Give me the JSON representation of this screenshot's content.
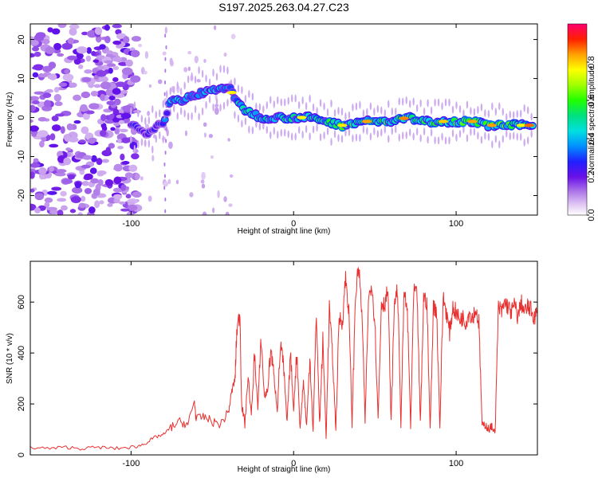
{
  "title": "S197.2025.263.04.27.C23",
  "chart_data": [
    {
      "type": "heatmap",
      "name": "spectrogram",
      "xlabel": "Height of straight line (km)",
      "ylabel": "Frequency (Hz)",
      "xlim": [
        -162,
        150
      ],
      "ylim": [
        -25,
        24
      ],
      "x_ticks": [
        -100,
        0,
        100
      ],
      "y_ticks": [
        -20,
        -10,
        0,
        10,
        20
      ],
      "colorbar": {
        "label": "Normalized spectral amplitude",
        "range": [
          0,
          1
        ],
        "ticks": [
          0.0,
          0.2,
          0.4,
          0.6,
          0.8
        ]
      },
      "dominant_frequency_track": {
        "x": [
          -100,
          -90,
          -80,
          -75,
          -70,
          -60,
          -50,
          -40,
          -35,
          -30,
          -20,
          -10,
          0,
          10,
          20,
          30,
          40,
          50,
          60,
          70,
          80,
          90,
          100,
          110,
          120,
          130,
          140,
          148
        ],
        "y": [
          -2,
          -4,
          -1,
          5,
          4,
          6,
          7,
          8,
          4,
          2,
          0,
          0,
          0,
          0,
          -1,
          -2,
          -1,
          -1,
          -1,
          0,
          -1,
          -1,
          -1,
          -1,
          -2,
          -2,
          -2,
          -2
        ]
      }
    },
    {
      "type": "line",
      "name": "snr",
      "xlabel": "Height of straight line (km)",
      "ylabel": "SNR (10 * v/v)",
      "xlim": [
        -162,
        150
      ],
      "ylim": [
        0,
        760
      ],
      "x_ticks": [
        -100,
        0,
        100
      ],
      "y_ticks": [
        0,
        200,
        400,
        600
      ],
      "series": [
        {
          "name": "SNR",
          "color": "#e83030",
          "x": [
            -162,
            -150,
            -140,
            -130,
            -120,
            -110,
            -100,
            -95,
            -90,
            -85,
            -80,
            -75,
            -70,
            -65,
            -61,
            -60,
            -55,
            -50,
            -45,
            -40,
            -38,
            -36,
            -35,
            -33,
            -32,
            -30,
            -28,
            -26,
            -24,
            -22,
            -20,
            -18,
            -16,
            -14,
            -12,
            -10,
            -8,
            -6,
            -4,
            -2,
            0,
            2,
            4,
            6,
            8,
            10,
            12,
            14,
            16,
            18,
            20,
            22,
            24,
            26,
            28,
            30,
            32,
            34,
            36,
            38,
            40,
            42,
            44,
            46,
            48,
            50,
            52,
            54,
            56,
            58,
            60,
            62,
            64,
            66,
            68,
            70,
            72,
            74,
            76,
            78,
            80,
            82,
            84,
            86,
            88,
            90,
            92,
            94,
            96,
            98,
            100,
            102,
            104,
            106,
            108,
            110,
            112,
            114,
            116,
            118,
            120,
            122,
            124,
            126,
            128,
            130,
            132,
            134,
            136,
            138,
            140,
            142,
            144,
            146,
            148,
            150
          ],
          "y": [
            30,
            25,
            30,
            25,
            30,
            25,
            30,
            35,
            50,
            70,
            80,
            110,
            130,
            120,
            210,
            140,
            150,
            130,
            120,
            170,
            250,
            300,
            480,
            560,
            200,
            120,
            310,
            150,
            400,
            180,
            460,
            230,
            250,
            420,
            300,
            180,
            440,
            330,
            120,
            400,
            180,
            410,
            100,
            290,
            110,
            390,
            90,
            560,
            120,
            450,
            70,
            580,
            380,
            100,
            540,
            520,
            700,
            560,
            120,
            620,
            740,
            560,
            130,
            600,
            680,
            520,
            140,
            600,
            590,
            650,
            130,
            600,
            650,
            120,
            640,
            560,
            110,
            650,
            620,
            120,
            620,
            600,
            100,
            580,
            570,
            110,
            620,
            560,
            480,
            580,
            560,
            530,
            540,
            520,
            560,
            540,
            570,
            520,
            110,
            120,
            100,
            110,
            90,
            580,
            560,
            600,
            580,
            560,
            590,
            540,
            600,
            560,
            580,
            570,
            540,
            560
          ]
        }
      ]
    }
  ]
}
